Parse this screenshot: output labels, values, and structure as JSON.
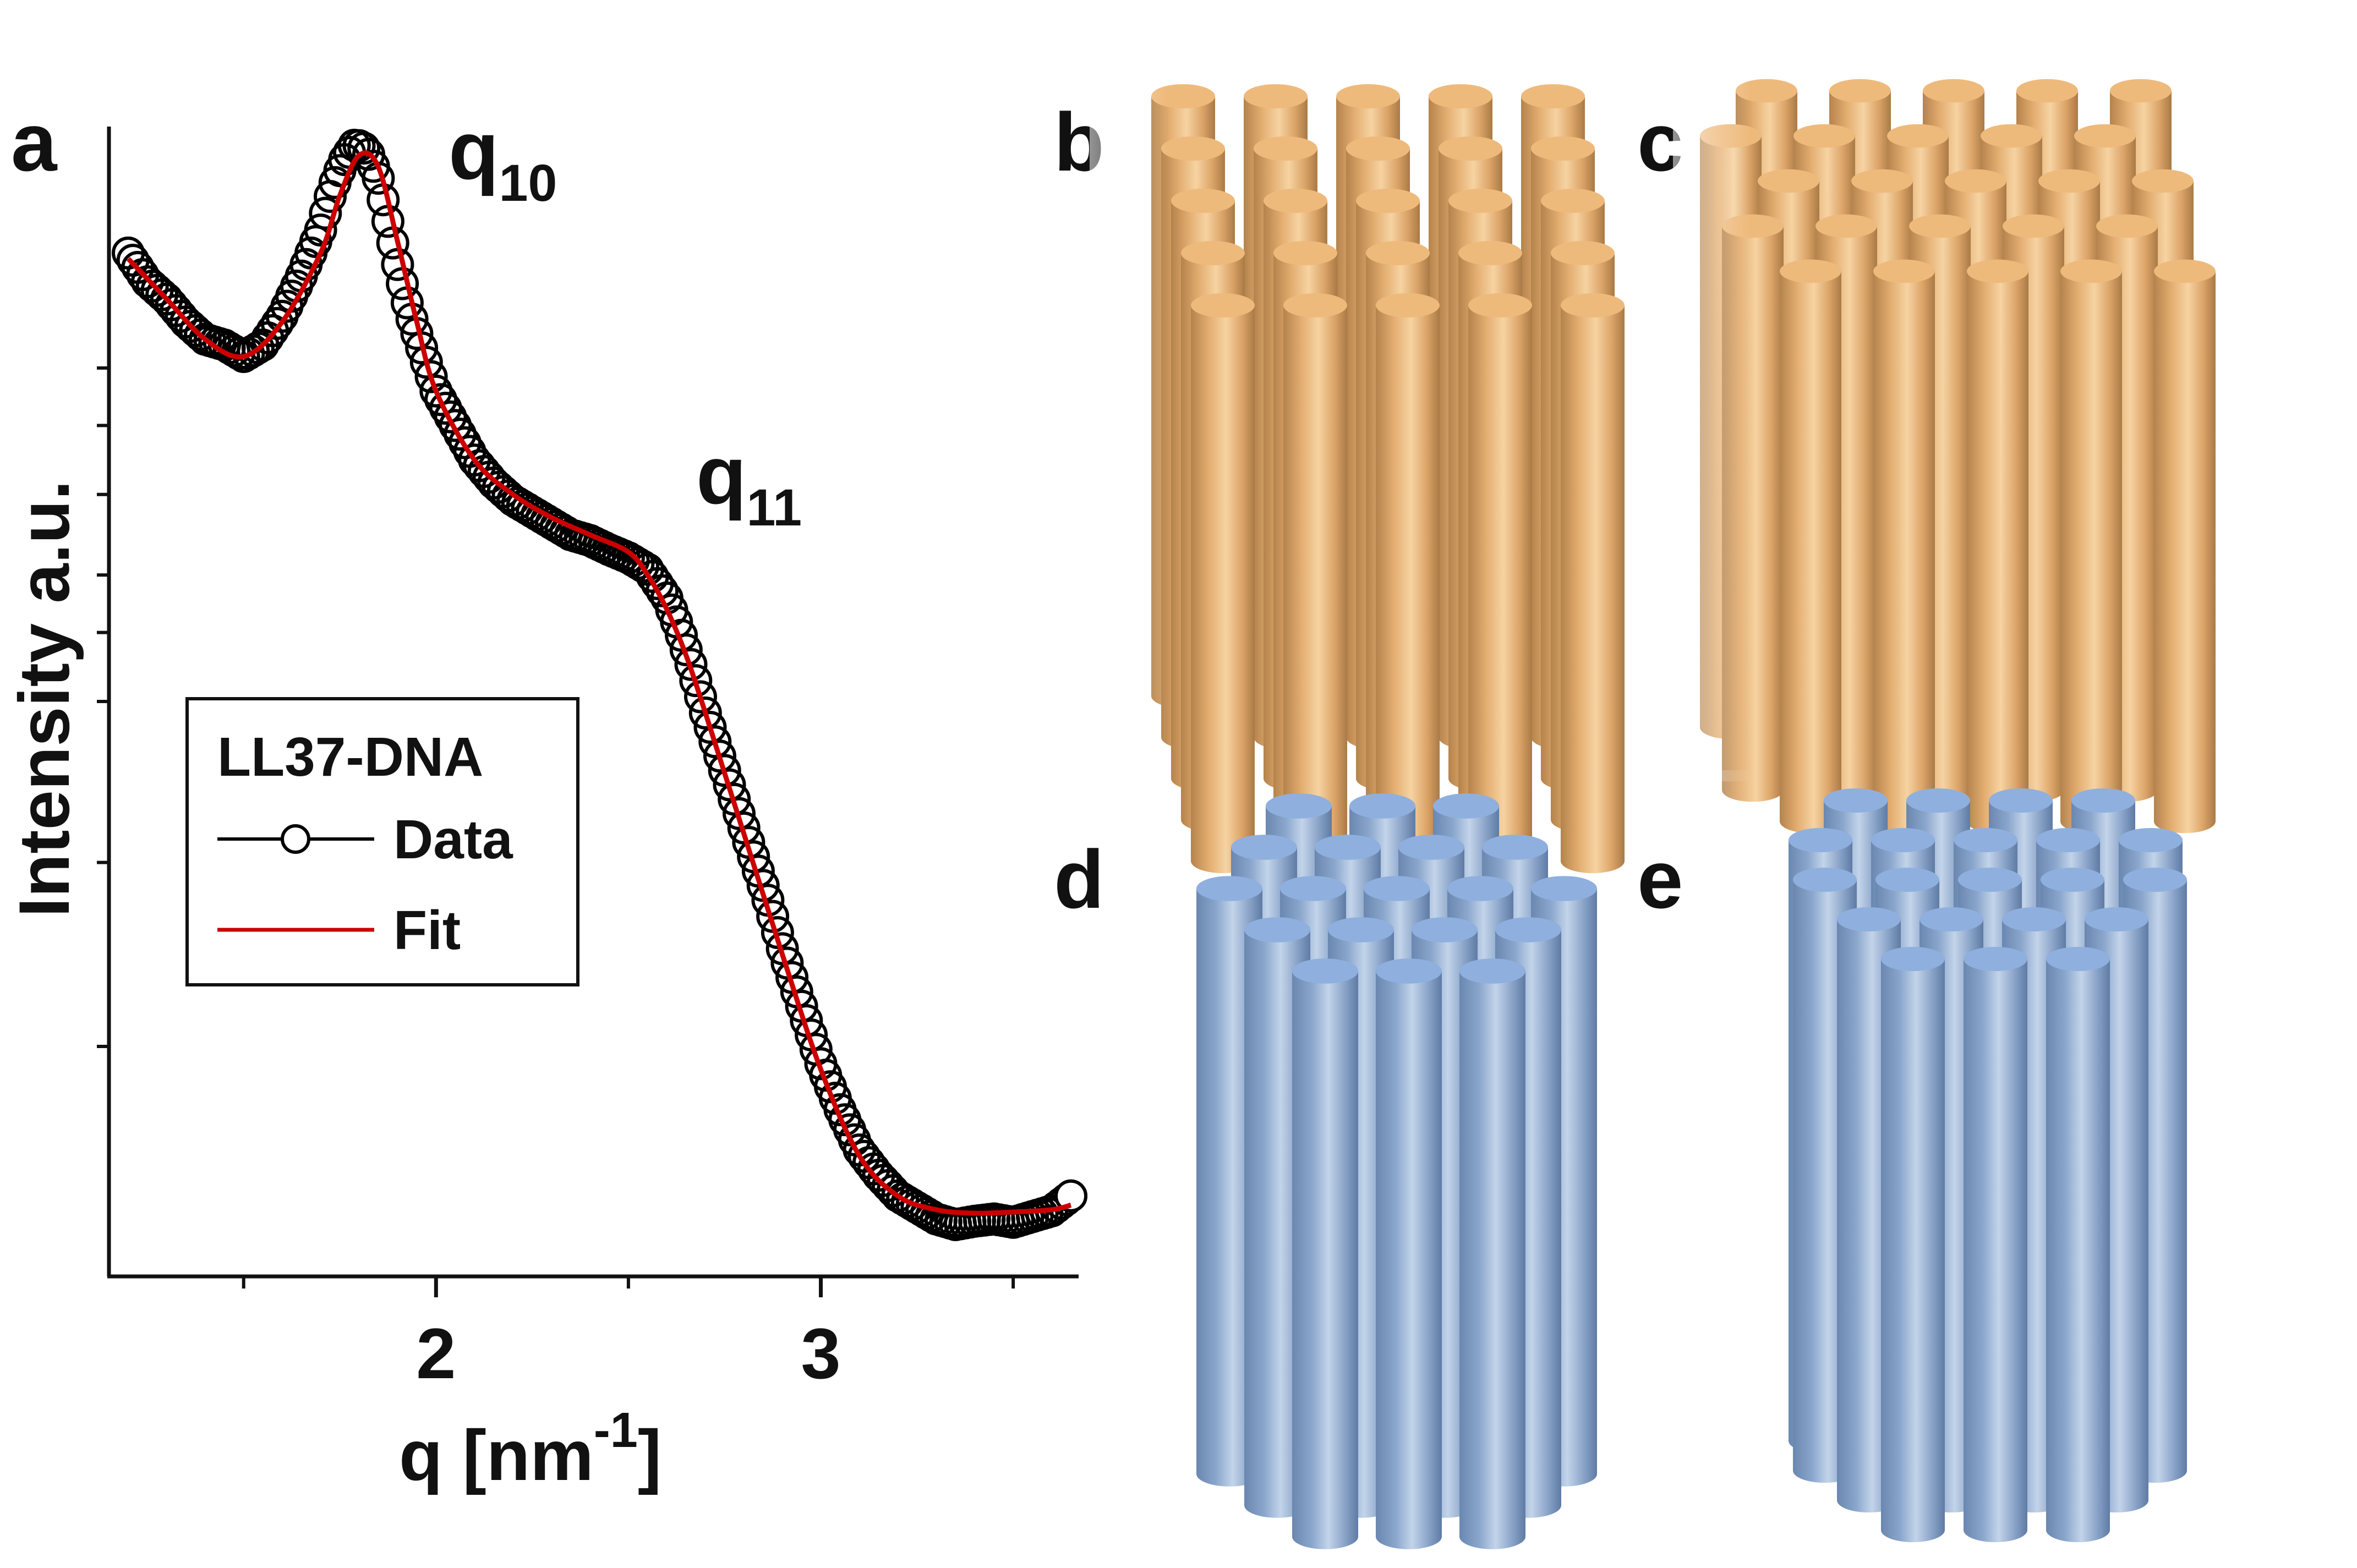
{
  "panel_labels": {
    "a": "a",
    "b": "b",
    "c": "c",
    "d": "d",
    "e": "e"
  },
  "colors": {
    "data": "#000000",
    "fit": "#cc0000",
    "gold_base": "#e8b373",
    "gold_light": "#f6d9ae",
    "gold_top": "#eeba7c",
    "blue_base": "#7f9cc4",
    "blue_light": "#c6d6ea",
    "blue_top": "#8fb0de"
  },
  "peaks": [
    {
      "letter": "q",
      "sub": "10"
    },
    {
      "letter": "q",
      "sub": "11"
    }
  ],
  "chart_data": {
    "type": "scatter",
    "title": "",
    "xlabel_main": "q [nm",
    "xlabel_sup": "-1",
    "xlabel_end": "]",
    "ylabel": "Intensity a.u.",
    "xlim": [
      1.15,
      3.67
    ],
    "ylim": [
      0,
      1
    ],
    "y_tick_labels_shown": false,
    "y_minor_ticks": [
      0.2,
      0.36,
      0.5,
      0.56,
      0.61,
      0.68,
      0.74,
      0.79
    ],
    "x_major_ticks": [
      2,
      3
    ],
    "x_tick_labels": [
      "2",
      "3"
    ],
    "x_minor_ticks": [
      1.5,
      2.5,
      3.5
    ],
    "legend": {
      "title": "LL37-DNA",
      "entries": [
        "Data",
        "Fit"
      ],
      "position": "left-center"
    },
    "fit_curve": {
      "name": "Fit",
      "x": [
        1.2,
        1.3,
        1.4,
        1.5,
        1.6,
        1.7,
        1.75,
        1.8,
        1.85,
        1.9,
        1.95,
        2.0,
        2.1,
        2.2,
        2.3,
        2.4,
        2.5,
        2.55,
        2.6,
        2.65,
        2.7,
        2.8,
        2.9,
        3.0,
        3.1,
        3.2,
        3.3,
        3.4,
        3.5,
        3.6,
        3.65
      ],
      "y": [
        0.885,
        0.85,
        0.815,
        0.8,
        0.83,
        0.89,
        0.94,
        0.975,
        0.965,
        0.9,
        0.83,
        0.77,
        0.71,
        0.68,
        0.66,
        0.645,
        0.63,
        0.61,
        0.58,
        0.54,
        0.49,
        0.385,
        0.28,
        0.18,
        0.105,
        0.07,
        0.058,
        0.055,
        0.056,
        0.058,
        0.062
      ]
    },
    "data_series": {
      "name": "Data",
      "x": [
        1.2,
        1.25,
        1.3,
        1.35,
        1.4,
        1.45,
        1.5,
        1.55,
        1.6,
        1.65,
        1.7,
        1.73,
        1.76,
        1.79,
        1.82,
        1.85,
        1.87,
        1.9,
        1.93,
        1.96,
        2.0,
        2.05,
        2.1,
        2.15,
        2.2,
        2.25,
        2.3,
        2.35,
        2.4,
        2.45,
        2.5,
        2.55,
        2.6,
        2.63,
        2.66,
        2.7,
        2.74,
        2.78,
        2.82,
        2.86,
        2.9,
        2.95,
        3.0,
        3.05,
        3.1,
        3.15,
        3.2,
        3.25,
        3.3,
        3.35,
        3.4,
        3.45,
        3.5,
        3.55,
        3.6,
        3.65
      ],
      "y": [
        0.89,
        0.865,
        0.85,
        0.83,
        0.815,
        0.81,
        0.8,
        0.81,
        0.835,
        0.87,
        0.91,
        0.945,
        0.97,
        0.985,
        0.98,
        0.955,
        0.925,
        0.88,
        0.84,
        0.81,
        0.77,
        0.74,
        0.71,
        0.69,
        0.675,
        0.665,
        0.655,
        0.645,
        0.64,
        0.632,
        0.625,
        0.615,
        0.59,
        0.565,
        0.535,
        0.49,
        0.45,
        0.41,
        0.37,
        0.33,
        0.285,
        0.235,
        0.185,
        0.145,
        0.11,
        0.088,
        0.07,
        0.06,
        0.05,
        0.045,
        0.048,
        0.05,
        0.047,
        0.052,
        0.057,
        0.07
      ]
    }
  }
}
